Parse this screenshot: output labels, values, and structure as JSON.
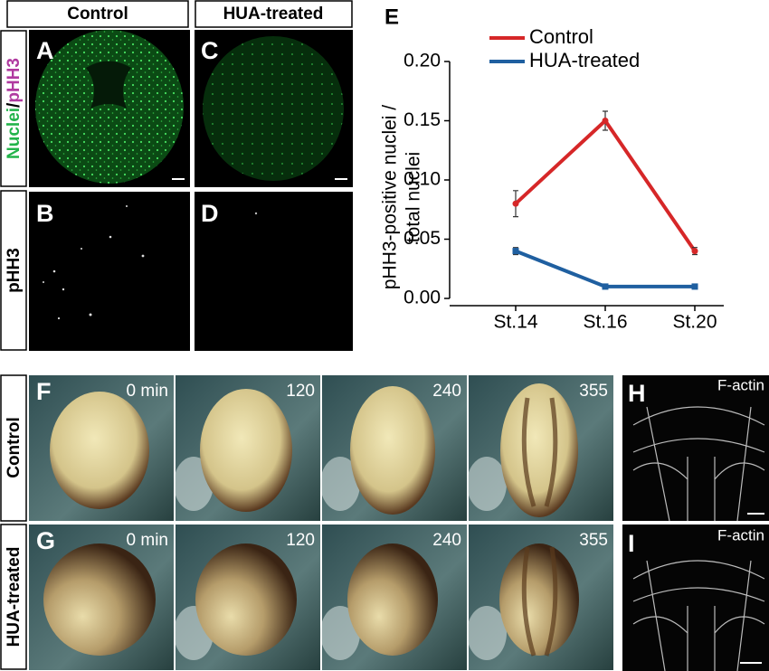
{
  "columns": [
    "Control",
    "HUA-treated"
  ],
  "top_rows": [
    [
      "Nuclei",
      "/",
      "pHH3"
    ],
    "pHH3"
  ],
  "panels_top": [
    "A",
    "B",
    "C",
    "D"
  ],
  "bottom_rows": [
    "Control",
    "HUA-treated"
  ],
  "panels_bottom": [
    "F",
    "G",
    "H",
    "I"
  ],
  "time_labels": [
    [
      "0 min",
      "120",
      "240",
      "355"
    ],
    [
      "0 min",
      "120",
      "240",
      "355"
    ]
  ],
  "stain_labels": [
    "F-actin",
    "F-actin"
  ],
  "chart_data": {
    "type": "line",
    "label": "E",
    "ylabel": [
      "pHH3-positive nuclei /",
      "total nuclei"
    ],
    "categories": [
      "St.14",
      "St.16",
      "St.20"
    ],
    "series": [
      {
        "name": "Control",
        "color": "#d62728",
        "values": [
          0.08,
          0.15,
          0.04
        ],
        "error": [
          0.011,
          0.008,
          0.003
        ]
      },
      {
        "name": "HUA-treated",
        "color": "#1f5fa0",
        "values": [
          0.04,
          0.01,
          0.01
        ],
        "error": [
          0.003,
          0.001,
          0.001
        ]
      }
    ],
    "ylim": [
      0,
      0.2
    ],
    "yticks": [
      {
        "value": 0,
        "label": "0.00"
      },
      0.05,
      {
        "value": 0.1,
        "label": "0.10"
      },
      0.15,
      {
        "value": 0.2,
        "label": "0.20"
      }
    ]
  }
}
